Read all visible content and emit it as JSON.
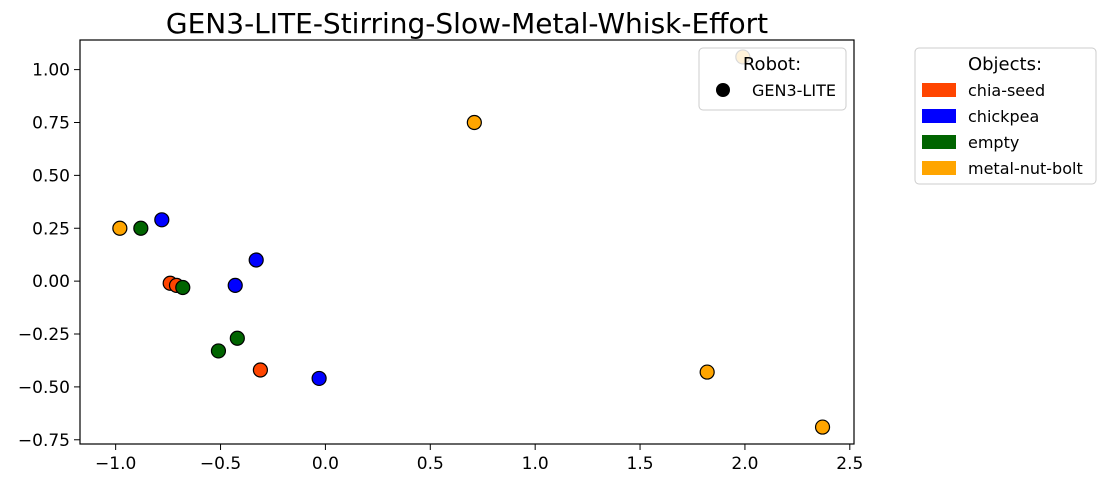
{
  "chart_data": {
    "type": "scatter",
    "title": "GEN3-LITE-Stirring-Slow-Metal-Whisk-Effort",
    "xlabel": "",
    "ylabel": "",
    "xlim": [
      -1.17,
      2.52
    ],
    "ylim": [
      -0.77,
      1.14
    ],
    "xticks": [
      -1.0,
      -0.5,
      0.0,
      0.5,
      1.0,
      1.5,
      2.0,
      2.5
    ],
    "xtick_labels": [
      "−1.0",
      "−0.5",
      "0.0",
      "0.5",
      "1.0",
      "1.5",
      "2.0",
      "2.5"
    ],
    "yticks": [
      -0.75,
      -0.5,
      -0.25,
      0.0,
      0.25,
      0.5,
      0.75,
      1.0
    ],
    "ytick_labels": [
      "−0.75",
      "−0.50",
      "−0.25",
      "0.00",
      "0.25",
      "0.50",
      "0.75",
      "1.00"
    ],
    "grid": false,
    "robot_legend": {
      "title": "Robot:",
      "placement": "top-right inside",
      "entries": [
        {
          "label": "GEN3-LITE",
          "marker": "circle",
          "color": "#000000"
        }
      ]
    },
    "object_legend": {
      "title": "Objects:",
      "placement": "outside right",
      "entries": [
        {
          "label": "chia-seed",
          "color": "#FF4500"
        },
        {
          "label": "chickpea",
          "color": "#0000FF"
        },
        {
          "label": "empty",
          "color": "#006400"
        },
        {
          "label": "metal-nut-bolt",
          "color": "#FFA500"
        }
      ]
    },
    "series": [
      {
        "name": "chia-seed",
        "color": "#FF4500",
        "points": [
          [
            -0.74,
            -0.01
          ],
          [
            -0.71,
            -0.02
          ],
          [
            -0.31,
            -0.42
          ]
        ]
      },
      {
        "name": "chickpea",
        "color": "#0000FF",
        "points": [
          [
            -0.78,
            0.29
          ],
          [
            -0.43,
            -0.02
          ],
          [
            -0.33,
            0.1
          ],
          [
            -0.03,
            -0.46
          ]
        ]
      },
      {
        "name": "empty",
        "color": "#006400",
        "points": [
          [
            -0.88,
            0.25
          ],
          [
            -0.68,
            -0.03
          ],
          [
            -0.42,
            -0.27
          ],
          [
            -0.51,
            -0.33
          ]
        ]
      },
      {
        "name": "metal-nut-bolt",
        "color": "#FFA500",
        "points": [
          [
            -0.98,
            0.25
          ],
          [
            0.71,
            0.75
          ],
          [
            1.99,
            1.06
          ],
          [
            1.82,
            -0.43
          ],
          [
            2.37,
            -0.69
          ]
        ]
      }
    ]
  }
}
